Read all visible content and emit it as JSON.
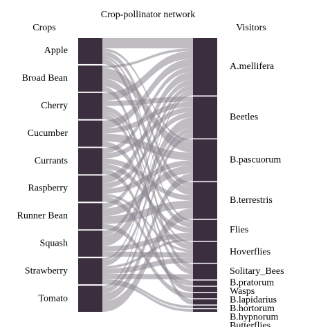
{
  "title": "Crop-pollinator network",
  "left_heading": "Crops",
  "right_heading": "Visitors",
  "crops": [
    "Apple",
    "Broad Bean",
    "Cherry",
    "Cucumber",
    "Currants",
    "Raspberry",
    "Runner Bean",
    "Squash",
    "Strawberry",
    "Tomato"
  ],
  "visitors": [
    "A.mellifera",
    "Beetles",
    "B.pascuorum",
    "B.terrestris",
    "Flies",
    "Hoverflies",
    "Solitary_Bees",
    "B.pratorum",
    "Wasps",
    "B.lapidarius",
    "B.hortorum",
    "B.hypnorum",
    "Butterflies"
  ],
  "links": [
    {
      "crop": 0,
      "visitor": 0,
      "weight": 4
    },
    {
      "crop": 0,
      "visitor": 2,
      "weight": 1
    },
    {
      "crop": 0,
      "visitor": 3,
      "weight": 2
    },
    {
      "crop": 0,
      "visitor": 4,
      "weight": 1
    },
    {
      "crop": 0,
      "visitor": 6,
      "weight": 2
    },
    {
      "crop": 1,
      "visitor": 0,
      "weight": 1
    },
    {
      "crop": 1,
      "visitor": 2,
      "weight": 4
    },
    {
      "crop": 1,
      "visitor": 3,
      "weight": 3
    },
    {
      "crop": 1,
      "visitor": 10,
      "weight": 2
    },
    {
      "crop": 2,
      "visitor": 0,
      "weight": 3
    },
    {
      "crop": 2,
      "visitor": 1,
      "weight": 2
    },
    {
      "crop": 2,
      "visitor": 4,
      "weight": 2
    },
    {
      "crop": 2,
      "visitor": 5,
      "weight": 1
    },
    {
      "crop": 2,
      "visitor": 6,
      "weight": 2
    },
    {
      "crop": 3,
      "visitor": 0,
      "weight": 3
    },
    {
      "crop": 3,
      "visitor": 1,
      "weight": 2
    },
    {
      "crop": 3,
      "visitor": 2,
      "weight": 3
    },
    {
      "crop": 3,
      "visitor": 5,
      "weight": 2
    },
    {
      "crop": 4,
      "visitor": 0,
      "weight": 2
    },
    {
      "crop": 4,
      "visitor": 1,
      "weight": 2
    },
    {
      "crop": 4,
      "visitor": 3,
      "weight": 2
    },
    {
      "crop": 4,
      "visitor": 4,
      "weight": 2
    },
    {
      "crop": 4,
      "visitor": 8,
      "weight": 2
    },
    {
      "crop": 5,
      "visitor": 0,
      "weight": 3
    },
    {
      "crop": 5,
      "visitor": 1,
      "weight": 2
    },
    {
      "crop": 5,
      "visitor": 2,
      "weight": 2
    },
    {
      "crop": 5,
      "visitor": 5,
      "weight": 1
    },
    {
      "crop": 5,
      "visitor": 7,
      "weight": 2
    },
    {
      "crop": 6,
      "visitor": 0,
      "weight": 2
    },
    {
      "crop": 6,
      "visitor": 2,
      "weight": 3
    },
    {
      "crop": 6,
      "visitor": 3,
      "weight": 3
    },
    {
      "crop": 6,
      "visitor": 9,
      "weight": 2
    },
    {
      "crop": 7,
      "visitor": 0,
      "weight": 2
    },
    {
      "crop": 7,
      "visitor": 1,
      "weight": 4
    },
    {
      "crop": 7,
      "visitor": 4,
      "weight": 2
    },
    {
      "crop": 7,
      "visitor": 5,
      "weight": 2
    },
    {
      "crop": 8,
      "visitor": 0,
      "weight": 1
    },
    {
      "crop": 8,
      "visitor": 1,
      "weight": 2
    },
    {
      "crop": 8,
      "visitor": 4,
      "weight": 1
    },
    {
      "crop": 8,
      "visitor": 5,
      "weight": 2
    },
    {
      "crop": 8,
      "visitor": 6,
      "weight": 2
    },
    {
      "crop": 8,
      "visitor": 11,
      "weight": 1
    },
    {
      "crop": 8,
      "visitor": 12,
      "weight": 1
    },
    {
      "crop": 9,
      "visitor": 0,
      "weight": 1
    },
    {
      "crop": 9,
      "visitor": 1,
      "weight": 2
    },
    {
      "crop": 9,
      "visitor": 2,
      "weight": 3
    },
    {
      "crop": 9,
      "visitor": 3,
      "weight": 4
    }
  ]
}
